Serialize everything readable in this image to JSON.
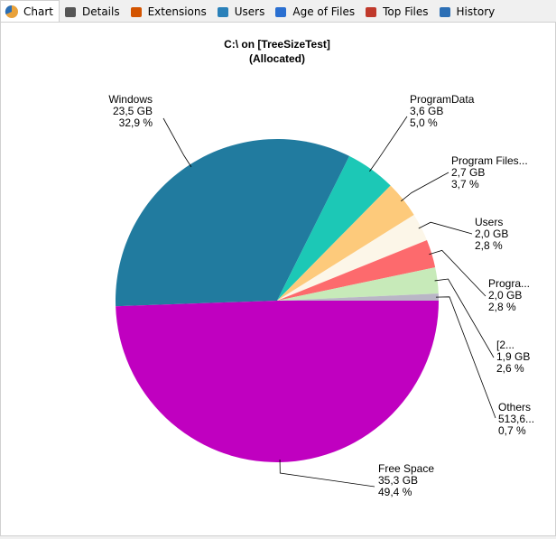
{
  "tabs": [
    "Chart",
    "Details",
    "Extensions",
    "Users",
    "Age of Files",
    "Top Files",
    "History"
  ],
  "chart_data": {
    "type": "pie",
    "title": "C:\\  on  [TreeSizeTest]",
    "subtitle": "(Allocated)",
    "categories": [
      "Windows",
      "ProgramData",
      "Program Files...",
      "Users",
      "Progra...",
      "[2...",
      "Others",
      "Free Space"
    ],
    "size_labels": [
      "23,5 GB",
      "3,6 GB",
      "2,7 GB",
      "2,0 GB",
      "2,0 GB",
      "1,9 GB",
      "513,6...",
      "35,3 GB"
    ],
    "values": [
      32.9,
      5.0,
      3.7,
      2.8,
      2.8,
      2.6,
      0.7,
      49.4
    ],
    "value_labels": [
      "32,9 %",
      "5,0 %",
      "3,7 %",
      "2,8 %",
      "2,8 %",
      "2,6 %",
      "0,7 %",
      "49,4 %"
    ],
    "colors": [
      "#217b9f",
      "#1cc8b6",
      "#fdca7b",
      "#fcf6e8",
      "#fd6a6d",
      "#c7eab9",
      "#b9b6c6",
      "#c000c0"
    ]
  }
}
